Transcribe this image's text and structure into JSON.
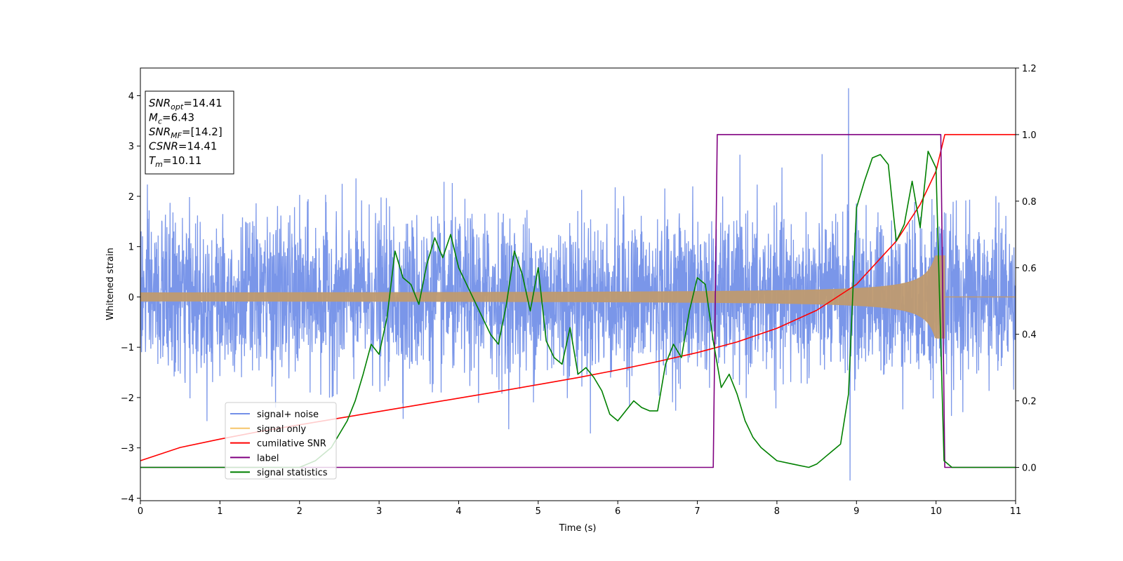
{
  "chart_data": {
    "type": "line",
    "title": "",
    "xlabel": "Time (s)",
    "ylabel": "Whitened strain",
    "xlim": [
      0,
      11
    ],
    "ylim": [
      -4.05,
      4.55
    ],
    "y2lim": [
      -0.1,
      1.2
    ],
    "x_ticks": [
      0,
      1,
      2,
      3,
      4,
      5,
      6,
      7,
      8,
      9,
      10,
      11
    ],
    "x_tick_labels": [
      "0",
      "1",
      "2",
      "3",
      "4",
      "5",
      "6",
      "7",
      "8",
      "9",
      "10",
      "11"
    ],
    "y_ticks": [
      -4,
      -3,
      -2,
      -1,
      0,
      1,
      2,
      3,
      4
    ],
    "y_tick_labels": [
      "−4",
      "−3",
      "−2",
      "−1",
      "0",
      "1",
      "2",
      "3",
      "4"
    ],
    "y2_ticks": [
      0.0,
      0.2,
      0.4,
      0.6,
      0.8,
      1.0,
      1.2
    ],
    "y2_tick_labels": [
      "0.0",
      "0.2",
      "0.4",
      "0.6",
      "0.8",
      "1.0",
      "1.2"
    ],
    "grid": false,
    "legend_placement": "lower-left",
    "annotation": {
      "lines": [
        {
          "base": "SNR",
          "sub": "opt",
          "value": "=14.41"
        },
        {
          "base": "M",
          "sub": "c",
          "value": "=6.43"
        },
        {
          "base": "SNR",
          "sub": "MF",
          "value": "=[14.2]"
        },
        {
          "base": "CSNR",
          "sub": "",
          "value": "=14.41"
        },
        {
          "base": "T",
          "sub": "m",
          "value": "=10.11"
        }
      ]
    },
    "series": [
      {
        "name": "signal+ noise",
        "axis": "left",
        "style": "noise",
        "color": "#7390e8",
        "noise_sigma": 0.95,
        "max_value": 4.15,
        "max_at": 8.9,
        "min_value": -3.65,
        "min_at": 8.92
      },
      {
        "name": "signal only",
        "axis": "left",
        "style": "chirp",
        "color": "#bf9a70",
        "legend_color": "#f6c56a",
        "amplitude_start": 0.07,
        "amplitude_end": 0.82,
        "merger_time": 10.11
      },
      {
        "name": "cumilative SNR",
        "axis": "right",
        "color": "#ff0000",
        "x": [
          0,
          0.5,
          1,
          1.5,
          2,
          2.5,
          3,
          3.5,
          4,
          4.5,
          5,
          5.5,
          6,
          6.5,
          7,
          7.5,
          8,
          8.5,
          9,
          9.5,
          9.8,
          10,
          10.11,
          10.5,
          11
        ],
        "values": [
          0.02,
          0.06,
          0.085,
          0.108,
          0.128,
          0.148,
          0.168,
          0.188,
          0.208,
          0.228,
          0.249,
          0.27,
          0.293,
          0.318,
          0.345,
          0.377,
          0.418,
          0.472,
          0.55,
          0.68,
          0.79,
          0.89,
          1.0,
          1.0,
          1.0
        ]
      },
      {
        "name": "label",
        "axis": "right",
        "color": "#800080",
        "x": [
          0,
          7.2,
          7.25,
          10.06,
          10.11,
          11
        ],
        "values": [
          0,
          0,
          1,
          1,
          0,
          0
        ]
      },
      {
        "name": "signal statistics",
        "axis": "right",
        "color": "#008000",
        "x": [
          0,
          0.5,
          1,
          1.5,
          2,
          2.2,
          2.4,
          2.5,
          2.6,
          2.7,
          2.8,
          2.9,
          3.0,
          3.1,
          3.2,
          3.3,
          3.4,
          3.5,
          3.6,
          3.7,
          3.8,
          3.9,
          4.0,
          4.2,
          4.3,
          4.4,
          4.5,
          4.6,
          4.7,
          4.8,
          4.9,
          5.0,
          5.1,
          5.2,
          5.3,
          5.4,
          5.5,
          5.6,
          5.7,
          5.8,
          5.9,
          6.0,
          6.1,
          6.2,
          6.3,
          6.4,
          6.5,
          6.6,
          6.7,
          6.8,
          6.9,
          7.0,
          7.1,
          7.2,
          7.3,
          7.4,
          7.5,
          7.6,
          7.7,
          7.8,
          7.9,
          8.0,
          8.2,
          8.4,
          8.5,
          8.6,
          8.7,
          8.8,
          8.9,
          9.0,
          9.1,
          9.2,
          9.3,
          9.4,
          9.5,
          9.6,
          9.7,
          9.8,
          9.9,
          10.0,
          10.1,
          10.2,
          10.5,
          11
        ],
        "values": [
          0,
          0,
          0,
          0,
          0,
          0.02,
          0.06,
          0.1,
          0.14,
          0.2,
          0.28,
          0.37,
          0.34,
          0.45,
          0.65,
          0.57,
          0.55,
          0.49,
          0.61,
          0.69,
          0.63,
          0.7,
          0.6,
          0.5,
          0.45,
          0.4,
          0.37,
          0.49,
          0.65,
          0.58,
          0.47,
          0.6,
          0.38,
          0.33,
          0.31,
          0.42,
          0.28,
          0.3,
          0.27,
          0.23,
          0.16,
          0.14,
          0.17,
          0.2,
          0.18,
          0.17,
          0.17,
          0.31,
          0.37,
          0.33,
          0.47,
          0.57,
          0.55,
          0.38,
          0.24,
          0.28,
          0.22,
          0.14,
          0.09,
          0.06,
          0.04,
          0.02,
          0.01,
          0.0,
          0.01,
          0.03,
          0.05,
          0.07,
          0.22,
          0.78,
          0.86,
          0.93,
          0.94,
          0.91,
          0.68,
          0.73,
          0.86,
          0.72,
          0.95,
          0.9,
          0.02,
          0.0,
          0.0,
          0.0
        ]
      }
    ]
  }
}
